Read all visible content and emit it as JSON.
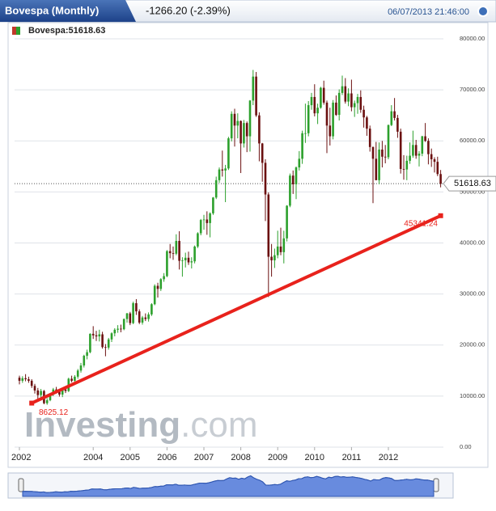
{
  "chart_data": {
    "type": "candlestick",
    "title": "Bovespa (Monthly)",
    "change": "-1266.20 (-2.39%)",
    "timestamp": "06/07/2013 21:46:00",
    "legend_label": "Bovespa:51618.63",
    "last_price": 51618.63,
    "up_color": "#2ca02c",
    "down_color": "#6b1010",
    "ylim": [
      0,
      80000
    ],
    "yticks": [
      {
        "value": 0,
        "label": "0.00"
      },
      {
        "value": 10000,
        "label": "10000.00"
      },
      {
        "value": 20000,
        "label": "20000.00"
      },
      {
        "value": 30000,
        "label": "30000.00"
      },
      {
        "value": 40000,
        "label": "40000.00"
      },
      {
        "value": 50000,
        "label": "50000.00"
      },
      {
        "value": 60000,
        "label": "60000.00"
      },
      {
        "value": 70000,
        "label": "70000.00"
      },
      {
        "value": 80000,
        "label": "80000.00"
      }
    ],
    "xticks": [
      {
        "value": 0,
        "label": "2002"
      },
      {
        "value": 24,
        "label": "2004"
      },
      {
        "value": 36,
        "label": "2005"
      },
      {
        "value": 48,
        "label": "2006"
      },
      {
        "value": 60,
        "label": "2007"
      },
      {
        "value": 72,
        "label": "2008"
      },
      {
        "value": 84,
        "label": "2009"
      },
      {
        "value": 96,
        "label": "2010"
      },
      {
        "value": 108,
        "label": "2011"
      },
      {
        "value": 120,
        "label": "2012"
      }
    ],
    "grid": true,
    "trendline": {
      "start": 8625.12,
      "end": 45341.24,
      "color": "#e8221c"
    },
    "watermark": [
      "Investing",
      ".com"
    ],
    "ohlc": [
      [
        13600,
        14000,
        12300,
        13000
      ],
      [
        13000,
        13900,
        12600,
        13500
      ],
      [
        13500,
        14300,
        12900,
        13300
      ],
      [
        13300,
        13800,
        12600,
        13000
      ],
      [
        13000,
        13300,
        11600,
        12000
      ],
      [
        12000,
        12400,
        10500,
        11100
      ],
      [
        11100,
        11600,
        9400,
        10200
      ],
      [
        10200,
        11400,
        9600,
        11000
      ],
      [
        11000,
        11200,
        8400,
        8600
      ],
      [
        8600,
        9600,
        8300,
        9200
      ],
      [
        9200,
        10600,
        9000,
        10300
      ],
      [
        10300,
        11600,
        10000,
        11300
      ],
      [
        11300,
        11800,
        10500,
        10900
      ],
      [
        10900,
        11200,
        9900,
        10300
      ],
      [
        10300,
        11600,
        9800,
        11300
      ],
      [
        11300,
        11900,
        10600,
        11000
      ],
      [
        11000,
        13600,
        10800,
        13400
      ],
      [
        13400,
        14000,
        12700,
        13000
      ],
      [
        13000,
        14100,
        12600,
        13800
      ],
      [
        13800,
        15300,
        13400,
        15000
      ],
      [
        15000,
        16500,
        14600,
        16000
      ],
      [
        16000,
        18100,
        15600,
        17900
      ],
      [
        17900,
        19100,
        17200,
        18600
      ],
      [
        18600,
        22300,
        18400,
        22200
      ],
      [
        22200,
        23700,
        21200,
        21900
      ],
      [
        21900,
        22800,
        20800,
        21700
      ],
      [
        21700,
        23000,
        20700,
        22100
      ],
      [
        22100,
        22600,
        19300,
        19600
      ],
      [
        19600,
        20200,
        17800,
        19500
      ],
      [
        19500,
        21400,
        19100,
        21100
      ],
      [
        21100,
        22500,
        20600,
        22300
      ],
      [
        22300,
        23300,
        21700,
        23000
      ],
      [
        23000,
        23900,
        22400,
        23200
      ],
      [
        23200,
        24000,
        22500,
        23100
      ],
      [
        23100,
        25200,
        22900,
        25100
      ],
      [
        25100,
        26300,
        24400,
        26200
      ],
      [
        26200,
        26500,
        23900,
        24300
      ],
      [
        24300,
        28500,
        24100,
        28200
      ],
      [
        28200,
        29000,
        25900,
        26600
      ],
      [
        26600,
        27000,
        24100,
        24400
      ],
      [
        24400,
        25700,
        24000,
        25400
      ],
      [
        25400,
        26200,
        24700,
        25100
      ],
      [
        25100,
        26400,
        24600,
        26000
      ],
      [
        26000,
        28200,
        25700,
        28000
      ],
      [
        28000,
        31900,
        27800,
        31600
      ],
      [
        31600,
        32200,
        29300,
        31000
      ],
      [
        31000,
        33100,
        30600,
        32900
      ],
      [
        32900,
        34100,
        32400,
        33500
      ],
      [
        33500,
        38600,
        33300,
        38400
      ],
      [
        38400,
        39800,
        37000,
        38000
      ],
      [
        38000,
        39300,
        36700,
        37900
      ],
      [
        37900,
        41700,
        37600,
        40400
      ],
      [
        40400,
        42300,
        34800,
        36500
      ],
      [
        36500,
        37200,
        33400,
        36600
      ],
      [
        36600,
        38100,
        35200,
        37100
      ],
      [
        37100,
        38300,
        35700,
        36200
      ],
      [
        36200,
        37200,
        35000,
        36400
      ],
      [
        36400,
        39500,
        36000,
        39300
      ],
      [
        39300,
        42100,
        39000,
        41900
      ],
      [
        41900,
        44700,
        41500,
        44500
      ],
      [
        44500,
        45500,
        42600,
        44600
      ],
      [
        44600,
        46200,
        41600,
        43900
      ],
      [
        43900,
        46000,
        41100,
        45800
      ],
      [
        45800,
        49000,
        45500,
        48900
      ],
      [
        48900,
        53000,
        48600,
        52300
      ],
      [
        52300,
        54800,
        51800,
        54400
      ],
      [
        54400,
        58100,
        53000,
        54200
      ],
      [
        54200,
        55300,
        48000,
        54600
      ],
      [
        54600,
        60800,
        54300,
        60500
      ],
      [
        60500,
        65800,
        59900,
        65300
      ],
      [
        65300,
        66300,
        58900,
        63000
      ],
      [
        63000,
        65400,
        60500,
        63900
      ],
      [
        63900,
        64000,
        53700,
        59500
      ],
      [
        59500,
        64100,
        58700,
        63500
      ],
      [
        63500,
        63800,
        57800,
        60900
      ],
      [
        60900,
        68000,
        57900,
        67900
      ],
      [
        67900,
        73900,
        67000,
        72600
      ],
      [
        72600,
        73500,
        64700,
        65000
      ],
      [
        65000,
        65600,
        56000,
        59500
      ],
      [
        59500,
        59600,
        52000,
        55700
      ],
      [
        55700,
        56400,
        44300,
        49500
      ],
      [
        49500,
        49900,
        29400,
        37300
      ],
      [
        37300,
        39800,
        33400,
        36600
      ],
      [
        36600,
        38900,
        35100,
        37600
      ],
      [
        37600,
        42400,
        37000,
        39300
      ],
      [
        39300,
        43000,
        37600,
        38200
      ],
      [
        38200,
        42400,
        36000,
        40900
      ],
      [
        40900,
        47400,
        40300,
        47300
      ],
      [
        47300,
        53600,
        47000,
        53200
      ],
      [
        53200,
        54200,
        49600,
        51500
      ],
      [
        51500,
        55000,
        48600,
        54800
      ],
      [
        54800,
        58000,
        54200,
        56500
      ],
      [
        56500,
        62000,
        55500,
        61500
      ],
      [
        61500,
        67300,
        59600,
        61500
      ],
      [
        61500,
        67800,
        60900,
        67000
      ],
      [
        67000,
        69400,
        66100,
        68600
      ],
      [
        68600,
        71100,
        64800,
        65400
      ],
      [
        65400,
        67300,
        63300,
        66500
      ],
      [
        66500,
        70600,
        66300,
        70400
      ],
      [
        70400,
        71800,
        67100,
        67500
      ],
      [
        67500,
        67900,
        57600,
        63000
      ],
      [
        63000,
        66500,
        59100,
        60900
      ],
      [
        60900,
        68000,
        60300,
        67500
      ],
      [
        67500,
        68900,
        64900,
        65100
      ],
      [
        65100,
        70100,
        64000,
        69400
      ],
      [
        69400,
        72800,
        69000,
        70700
      ],
      [
        70700,
        72300,
        67300,
        67700
      ],
      [
        67700,
        70300,
        66800,
        69300
      ],
      [
        69300,
        72000,
        65800,
        66600
      ],
      [
        66600,
        67900,
        64700,
        67400
      ],
      [
        67400,
        69200,
        65300,
        68600
      ],
      [
        68600,
        69900,
        65500,
        66100
      ],
      [
        66100,
        66900,
        62600,
        64600
      ],
      [
        64600,
        64900,
        61000,
        62400
      ],
      [
        62400,
        63000,
        57900,
        58800
      ],
      [
        58800,
        58900,
        47800,
        56500
      ],
      [
        56500,
        59800,
        52300,
        52300
      ],
      [
        52300,
        59700,
        51500,
        58300
      ],
      [
        58300,
        60000,
        54800,
        56900
      ],
      [
        56900,
        59200,
        55600,
        56800
      ],
      [
        56800,
        63200,
        56400,
        63100
      ],
      [
        63100,
        67000,
        62900,
        65800
      ],
      [
        65800,
        68400,
        64000,
        64500
      ],
      [
        64500,
        65100,
        60600,
        61800
      ],
      [
        61800,
        62400,
        53600,
        54500
      ],
      [
        54500,
        57200,
        52400,
        54400
      ],
      [
        54400,
        57100,
        52300,
        56100
      ],
      [
        56100,
        59700,
        55500,
        57100
      ],
      [
        57100,
        62000,
        56700,
        59200
      ],
      [
        59200,
        60200,
        56500,
        57100
      ],
      [
        57100,
        58000,
        55000,
        57500
      ],
      [
        57500,
        61000,
        57000,
        60900
      ],
      [
        60900,
        63500,
        59800,
        60000
      ],
      [
        60000,
        60500,
        55400,
        57400
      ],
      [
        57400,
        58500,
        54900,
        56400
      ],
      [
        56400,
        56800,
        53800,
        55900
      ],
      [
        55900,
        56900,
        53100,
        53500
      ],
      [
        53500,
        54300,
        50900,
        51618.63
      ]
    ]
  }
}
